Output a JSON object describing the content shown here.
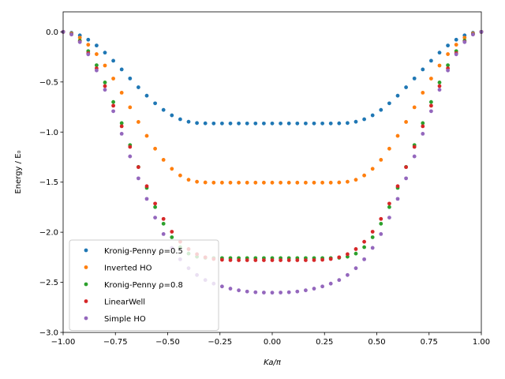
{
  "chart_data": {
    "type": "scatter",
    "xlabel": "Ka/π",
    "ylabel": "Energy / E₀",
    "xlim": [
      -1.0,
      1.0
    ],
    "ylim": [
      -3.0,
      0.2
    ],
    "x_ticks": [
      "−1.00",
      "−0.75",
      "−0.50",
      "−0.25",
      "0.00",
      "0.25",
      "0.50",
      "0.75",
      "1.00"
    ],
    "x_tick_values": [
      -1.0,
      -0.75,
      -0.5,
      -0.25,
      0.0,
      0.25,
      0.5,
      0.75,
      1.0
    ],
    "y_ticks": [
      "0.0",
      "−0.5",
      "−1.0",
      "−1.5",
      "−2.0",
      "−2.5",
      "−3.0"
    ],
    "y_tick_values": [
      0.0,
      -0.5,
      -1.0,
      -1.5,
      -2.0,
      -2.5,
      -3.0
    ],
    "grid": false,
    "legend_position": "lower-left",
    "x": [
      -1.0,
      -0.96,
      -0.92,
      -0.88,
      -0.84,
      -0.8,
      -0.76,
      -0.72,
      -0.68,
      -0.64,
      -0.6,
      -0.56,
      -0.52,
      -0.48,
      -0.44,
      -0.4,
      -0.36,
      -0.32,
      -0.28,
      -0.24,
      -0.2,
      -0.16,
      -0.12,
      -0.08,
      -0.04,
      0.0,
      0.04,
      0.08,
      0.12,
      0.16,
      0.2,
      0.24,
      0.28,
      0.32,
      0.36,
      0.4,
      0.44,
      0.48,
      0.52,
      0.56,
      0.6,
      0.64,
      0.68,
      0.72,
      0.76,
      0.8,
      0.84,
      0.88,
      0.92,
      0.96,
      1.0
    ],
    "series": [
      {
        "name": "Kronig-Penny ρ=0.5",
        "color": "#1f77b4",
        "values": [
          0.0,
          -0.009,
          -0.035,
          -0.078,
          -0.136,
          -0.207,
          -0.288,
          -0.375,
          -0.465,
          -0.553,
          -0.637,
          -0.713,
          -0.779,
          -0.833,
          -0.872,
          -0.897,
          -0.91,
          -0.913,
          -0.914,
          -0.914,
          -0.914,
          -0.914,
          -0.914,
          -0.914,
          -0.914,
          -0.914,
          -0.914,
          -0.914,
          -0.914,
          -0.914,
          -0.914,
          -0.914,
          -0.914,
          -0.913,
          -0.91,
          -0.897,
          -0.872,
          -0.833,
          -0.779,
          -0.713,
          -0.637,
          -0.553,
          -0.465,
          -0.375,
          -0.288,
          -0.207,
          -0.136,
          -0.078,
          -0.035,
          -0.009,
          0.0
        ]
      },
      {
        "name": "Inverted HO",
        "color": "#ff7f0e",
        "values": [
          0.0,
          -0.015,
          -0.058,
          -0.128,
          -0.222,
          -0.336,
          -0.466,
          -0.607,
          -0.753,
          -0.899,
          -1.038,
          -1.166,
          -1.277,
          -1.367,
          -1.433,
          -1.476,
          -1.496,
          -1.503,
          -1.505,
          -1.505,
          -1.505,
          -1.505,
          -1.505,
          -1.505,
          -1.505,
          -1.505,
          -1.505,
          -1.505,
          -1.505,
          -1.505,
          -1.505,
          -1.505,
          -1.505,
          -1.503,
          -1.496,
          -1.476,
          -1.433,
          -1.367,
          -1.277,
          -1.166,
          -1.038,
          -0.899,
          -0.753,
          -0.607,
          -0.466,
          -0.336,
          -0.222,
          -0.128,
          -0.058,
          -0.015,
          0.0
        ]
      },
      {
        "name": "Kronig-Penny ρ=0.8",
        "color": "#2ca02c",
        "values": [
          0.0,
          -0.022,
          -0.087,
          -0.192,
          -0.333,
          -0.505,
          -0.7,
          -0.911,
          -1.13,
          -1.348,
          -1.557,
          -1.749,
          -1.915,
          -2.05,
          -2.149,
          -2.213,
          -2.244,
          -2.255,
          -2.258,
          -2.258,
          -2.258,
          -2.258,
          -2.258,
          -2.258,
          -2.258,
          -2.258,
          -2.258,
          -2.258,
          -2.258,
          -2.258,
          -2.258,
          -2.258,
          -2.258,
          -2.255,
          -2.244,
          -2.213,
          -2.149,
          -2.05,
          -1.915,
          -1.749,
          -1.557,
          -1.348,
          -1.13,
          -0.911,
          -0.7,
          -0.505,
          -0.333,
          -0.192,
          -0.087,
          -0.022,
          0.0
        ]
      },
      {
        "name": "LinearWell",
        "color": "#d62728",
        "values": [
          0.0,
          -0.025,
          -0.098,
          -0.213,
          -0.364,
          -0.541,
          -0.737,
          -0.942,
          -1.148,
          -1.35,
          -1.54,
          -1.714,
          -1.867,
          -1.995,
          -2.095,
          -2.168,
          -2.219,
          -2.25,
          -2.267,
          -2.275,
          -2.278,
          -2.279,
          -2.279,
          -2.279,
          -2.279,
          -2.279,
          -2.279,
          -2.279,
          -2.279,
          -2.279,
          -2.278,
          -2.275,
          -2.267,
          -2.25,
          -2.219,
          -2.168,
          -2.095,
          -1.995,
          -1.867,
          -1.714,
          -1.54,
          -1.35,
          -1.148,
          -0.942,
          -0.737,
          -0.541,
          -0.364,
          -0.213,
          -0.098,
          -0.025,
          0.0
        ]
      },
      {
        "name": "Simple HO",
        "color": "#9467bd",
        "values": [
          0.0,
          -0.026,
          -0.102,
          -0.224,
          -0.385,
          -0.578,
          -0.792,
          -1.017,
          -1.243,
          -1.462,
          -1.667,
          -1.854,
          -2.018,
          -2.156,
          -2.27,
          -2.359,
          -2.427,
          -2.477,
          -2.513,
          -2.541,
          -2.563,
          -2.58,
          -2.592,
          -2.599,
          -2.602,
          -2.603,
          -2.602,
          -2.599,
          -2.592,
          -2.58,
          -2.563,
          -2.541,
          -2.513,
          -2.477,
          -2.427,
          -2.359,
          -2.27,
          -2.156,
          -2.018,
          -1.854,
          -1.667,
          -1.462,
          -1.243,
          -1.017,
          -0.792,
          -0.578,
          -0.385,
          -0.224,
          -0.102,
          -0.026,
          0.0
        ]
      }
    ]
  }
}
